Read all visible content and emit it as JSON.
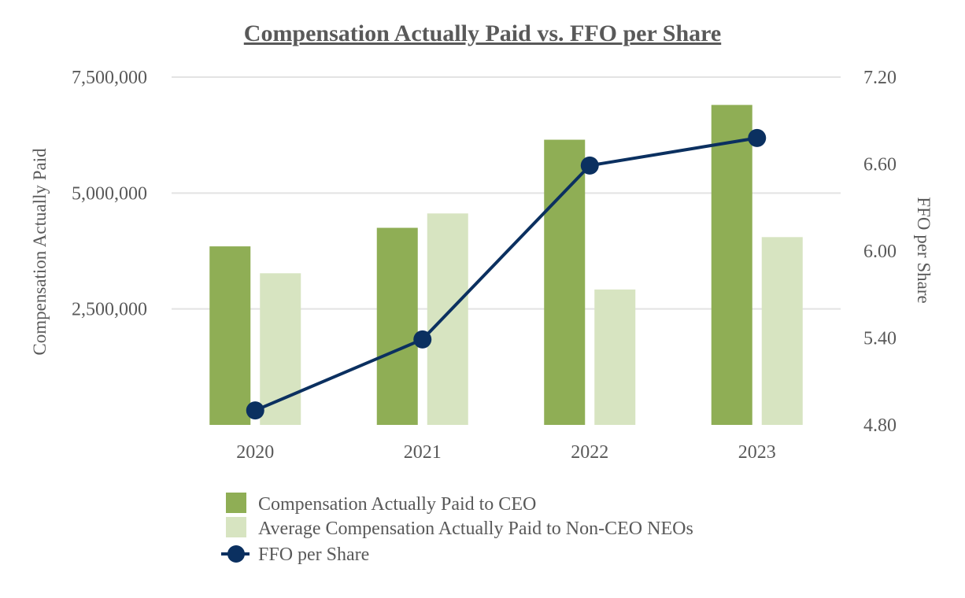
{
  "chart_data": {
    "type": "bar",
    "title": "Compensation Actually Paid vs. FFO per Share",
    "categories": [
      "2020",
      "2021",
      "2022",
      "2023"
    ],
    "y_left": {
      "label": "Compensation Actually Paid",
      "min": 0,
      "max": 7500000,
      "ticks": [
        2500000,
        5000000,
        7500000
      ],
      "tick_labels": [
        "2,500,000",
        "5,000,000",
        "7,500,000"
      ]
    },
    "y_right": {
      "label": "FFO per Share",
      "min": 4.8,
      "max": 7.2,
      "ticks": [
        4.8,
        5.4,
        6.0,
        6.6,
        7.2
      ],
      "tick_labels": [
        "4.80",
        "5.40",
        "6.00",
        "6.60",
        "7.20"
      ]
    },
    "grid": true,
    "legend_position": "bottom",
    "series": [
      {
        "name": "Compensation Actually Paid to CEO",
        "kind": "bar",
        "axis": "left",
        "color": "#8fae55",
        "values": [
          3850000,
          4250000,
          6150000,
          6900000
        ]
      },
      {
        "name": "Average Compensation Actually Paid to Non-CEO NEOs",
        "kind": "bar",
        "axis": "left",
        "color": "#d7e4c1",
        "values": [
          3270000,
          4560000,
          2920000,
          4050000
        ]
      },
      {
        "name": "FFO per Share",
        "kind": "line",
        "axis": "right",
        "color": "#0b3060",
        "values": [
          4.9,
          5.39,
          6.59,
          6.78
        ]
      }
    ]
  }
}
